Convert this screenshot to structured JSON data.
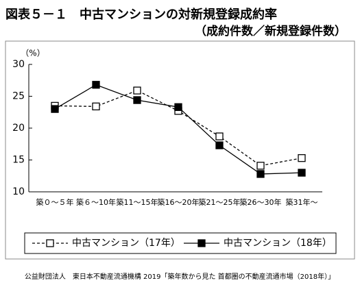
{
  "chart_data": {
    "type": "line",
    "title": "図表５－１　中古マンションの対新規登録成約率",
    "subtitle": "（成約件数／新規登録件数）",
    "y_label": "（%）",
    "categories": [
      "築０～５年",
      "築６～10年",
      "築11～15年",
      "築16～20年",
      "築21～25年",
      "築26～30年",
      "築31年～"
    ],
    "series": [
      {
        "name": "中古マンション（17年）",
        "color": "#000000",
        "line_style": "dashed",
        "marker": "open-square",
        "values": [
          23.5,
          23.4,
          25.9,
          22.7,
          18.7,
          14.1,
          15.3
        ]
      },
      {
        "name": "中古マンション（18年）",
        "color": "#000000",
        "line_style": "solid",
        "marker": "filled-square",
        "values": [
          23.0,
          26.8,
          24.4,
          23.3,
          17.3,
          12.8,
          13.0
        ]
      }
    ],
    "ylim": [
      10,
      30
    ],
    "yticks": [
      10,
      15,
      20,
      25,
      30
    ],
    "grid": false,
    "legend": "bottom",
    "source": "公益財団法人　東日本不動産流通機構 2019「築年数から見た 首都圏の不動産流通市場（2018年）」"
  }
}
